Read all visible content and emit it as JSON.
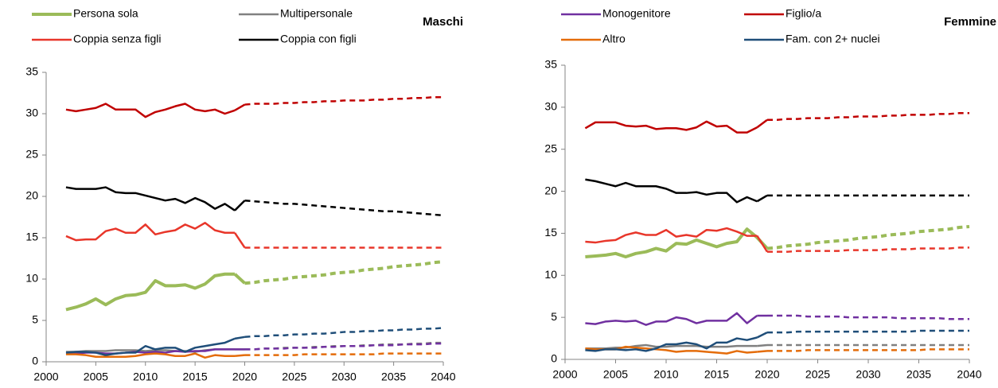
{
  "chart_data": [
    {
      "type": "line",
      "title": "Maschi",
      "x": [
        2002,
        2003,
        2004,
        2005,
        2006,
        2007,
        2008,
        2009,
        2010,
        2011,
        2012,
        2013,
        2014,
        2015,
        2016,
        2017,
        2018,
        2019,
        2020,
        2021,
        2022,
        2023,
        2024,
        2025,
        2026,
        2027,
        2028,
        2029,
        2030,
        2031,
        2032,
        2033,
        2034,
        2035,
        2036,
        2037,
        2038,
        2039,
        2040
      ],
      "xlim": [
        2000,
        2040
      ],
      "xticks": [
        2000,
        2005,
        2010,
        2015,
        2020,
        2025,
        2030,
        2035,
        2040
      ],
      "ylim": [
        0,
        35
      ],
      "yticks": [
        0,
        5,
        10,
        15,
        20,
        25,
        30,
        35
      ],
      "dashed_from": 2020,
      "series": [
        {
          "name": "Persona sola",
          "color": "#9bbb59",
          "values": [
            6.3,
            6.6,
            7.0,
            7.6,
            6.9,
            7.6,
            8.0,
            8.1,
            8.4,
            9.8,
            9.2,
            9.2,
            9.3,
            8.9,
            9.4,
            10.4,
            10.6,
            10.6,
            9.5,
            9.6,
            9.8,
            9.9,
            10.0,
            10.2,
            10.3,
            10.4,
            10.5,
            10.7,
            10.8,
            10.9,
            11.1,
            11.2,
            11.3,
            11.5,
            11.6,
            11.7,
            11.8,
            12.0,
            12.1
          ]
        },
        {
          "name": "Multipersonale",
          "color": "#808080",
          "values": [
            1.2,
            1.2,
            1.3,
            1.3,
            1.3,
            1.4,
            1.4,
            1.4,
            1.3,
            1.4,
            1.4,
            1.3,
            1.3,
            1.2,
            1.4,
            1.5,
            1.5,
            1.5,
            1.5,
            1.5,
            1.6,
            1.6,
            1.7,
            1.7,
            1.7,
            1.8,
            1.8,
            1.9,
            1.9,
            1.9,
            2.0,
            2.0,
            2.1,
            2.1,
            2.1,
            2.2,
            2.2,
            2.3,
            2.3
          ]
        },
        {
          "name": "Coppia senza figli",
          "color": "#e8362a",
          "values": [
            15.2,
            14.7,
            14.8,
            14.8,
            15.8,
            16.1,
            15.6,
            15.6,
            16.6,
            15.4,
            15.7,
            15.9,
            16.6,
            16.1,
            16.8,
            15.9,
            15.6,
            15.6,
            13.8,
            13.8,
            13.8,
            13.8,
            13.8,
            13.8,
            13.8,
            13.8,
            13.8,
            13.8,
            13.8,
            13.8,
            13.8,
            13.8,
            13.8,
            13.8,
            13.8,
            13.8,
            13.8,
            13.8,
            13.8
          ]
        },
        {
          "name": "Coppia con figli",
          "color": "#000000",
          "values": [
            21.1,
            20.9,
            20.9,
            20.9,
            21.1,
            20.5,
            20.4,
            20.4,
            20.1,
            19.8,
            19.5,
            19.7,
            19.2,
            19.8,
            19.3,
            18.5,
            19.1,
            18.3,
            19.5,
            19.4,
            19.3,
            19.2,
            19.1,
            19.1,
            19.0,
            18.9,
            18.8,
            18.7,
            18.6,
            18.5,
            18.4,
            18.3,
            18.2,
            18.2,
            18.1,
            18.0,
            17.9,
            17.8,
            17.7
          ]
        },
        {
          "color": "#7030a0",
          "values": [
            1.0,
            1.0,
            1.1,
            1.1,
            1.0,
            1.0,
            1.1,
            1.2,
            1.1,
            1.2,
            1.1,
            1.3,
            1.2,
            1.3,
            1.3,
            1.5,
            1.5,
            1.5,
            1.5,
            1.5,
            1.6,
            1.6,
            1.6,
            1.7,
            1.7,
            1.7,
            1.8,
            1.8,
            1.9,
            1.9,
            1.9,
            2.0,
            2.0,
            2.0,
            2.1,
            2.1,
            2.1,
            2.2,
            2.2
          ]
        },
        {
          "color": "#c00000",
          "values": [
            30.5,
            30.3,
            30.5,
            30.7,
            31.2,
            30.5,
            30.5,
            30.5,
            29.6,
            30.2,
            30.5,
            30.9,
            31.2,
            30.5,
            30.3,
            30.5,
            30.0,
            30.4,
            31.1,
            31.2,
            31.2,
            31.2,
            31.3,
            31.3,
            31.4,
            31.4,
            31.5,
            31.5,
            31.6,
            31.6,
            31.6,
            31.7,
            31.7,
            31.8,
            31.8,
            31.9,
            31.9,
            32.0,
            32.0
          ]
        },
        {
          "color": "#e46c0a",
          "values": [
            0.9,
            0.9,
            0.8,
            0.6,
            0.6,
            0.6,
            0.6,
            0.7,
            0.9,
            1.0,
            0.9,
            0.7,
            0.7,
            1.0,
            0.5,
            0.8,
            0.7,
            0.7,
            0.8,
            0.8,
            0.8,
            0.8,
            0.8,
            0.8,
            0.9,
            0.9,
            0.9,
            0.9,
            0.9,
            0.9,
            0.9,
            0.9,
            1.0,
            1.0,
            1.0,
            1.0,
            1.0,
            1.0,
            1.0
          ]
        },
        {
          "color": "#1f4e79",
          "values": [
            1.1,
            1.2,
            1.2,
            1.1,
            0.8,
            1.0,
            1.1,
            1.1,
            1.9,
            1.5,
            1.7,
            1.7,
            1.2,
            1.7,
            1.9,
            2.1,
            2.3,
            2.8,
            3.0,
            3.1,
            3.1,
            3.2,
            3.2,
            3.3,
            3.3,
            3.4,
            3.4,
            3.5,
            3.6,
            3.6,
            3.7,
            3.7,
            3.8,
            3.8,
            3.9,
            3.9,
            4.0,
            4.0,
            4.1
          ]
        }
      ]
    },
    {
      "type": "line",
      "title": "Femmine",
      "x": [
        2002,
        2003,
        2004,
        2005,
        2006,
        2007,
        2008,
        2009,
        2010,
        2011,
        2012,
        2013,
        2014,
        2015,
        2016,
        2017,
        2018,
        2019,
        2020,
        2021,
        2022,
        2023,
        2024,
        2025,
        2026,
        2027,
        2028,
        2029,
        2030,
        2031,
        2032,
        2033,
        2034,
        2035,
        2036,
        2037,
        2038,
        2039,
        2040
      ],
      "xlim": [
        2000,
        2040
      ],
      "xticks": [
        2000,
        2005,
        2010,
        2015,
        2020,
        2025,
        2030,
        2035,
        2040
      ],
      "ylim": [
        0,
        35
      ],
      "yticks": [
        0,
        5,
        10,
        15,
        20,
        25,
        30,
        35
      ],
      "dashed_from": 2020,
      "series": [
        {
          "color": "#9bbb59",
          "values": [
            12.2,
            12.3,
            12.4,
            12.6,
            12.2,
            12.6,
            12.8,
            13.2,
            12.9,
            13.8,
            13.7,
            14.2,
            13.8,
            13.4,
            13.8,
            14.0,
            15.5,
            14.5,
            13.2,
            13.3,
            13.5,
            13.6,
            13.7,
            13.9,
            14.0,
            14.1,
            14.2,
            14.4,
            14.5,
            14.6,
            14.8,
            14.9,
            15.0,
            15.2,
            15.3,
            15.4,
            15.5,
            15.7,
            15.8
          ]
        },
        {
          "color": "#808080",
          "values": [
            1.3,
            1.3,
            1.3,
            1.4,
            1.4,
            1.6,
            1.7,
            1.5,
            1.5,
            1.6,
            1.6,
            1.6,
            1.5,
            1.5,
            1.5,
            1.6,
            1.6,
            1.6,
            1.7,
            1.7,
            1.7,
            1.7,
            1.7,
            1.7,
            1.7,
            1.7,
            1.7,
            1.7,
            1.7,
            1.7,
            1.7,
            1.7,
            1.7,
            1.7,
            1.7,
            1.7,
            1.7,
            1.7,
            1.7
          ]
        },
        {
          "color": "#e8362a",
          "values": [
            14.0,
            13.9,
            14.1,
            14.2,
            14.8,
            15.1,
            14.8,
            14.8,
            15.4,
            14.6,
            14.8,
            14.6,
            15.4,
            15.3,
            15.6,
            15.2,
            14.7,
            14.7,
            12.8,
            12.8,
            12.8,
            12.9,
            12.9,
            12.9,
            12.9,
            12.9,
            13.0,
            13.0,
            13.0,
            13.0,
            13.1,
            13.1,
            13.1,
            13.2,
            13.2,
            13.2,
            13.2,
            13.3,
            13.3
          ]
        },
        {
          "color": "#000000",
          "values": [
            21.4,
            21.2,
            20.9,
            20.6,
            21.0,
            20.6,
            20.6,
            20.6,
            20.3,
            19.8,
            19.8,
            19.9,
            19.6,
            19.8,
            19.8,
            18.7,
            19.3,
            18.8,
            19.5,
            19.5,
            19.5,
            19.5,
            19.5,
            19.5,
            19.5,
            19.5,
            19.5,
            19.5,
            19.5,
            19.5,
            19.5,
            19.5,
            19.5,
            19.5,
            19.5,
            19.5,
            19.5,
            19.5,
            19.5
          ]
        },
        {
          "name": "Monogenitore",
          "color": "#7030a0",
          "values": [
            4.3,
            4.2,
            4.5,
            4.6,
            4.5,
            4.6,
            4.1,
            4.5,
            4.5,
            5.0,
            4.8,
            4.3,
            4.6,
            4.6,
            4.6,
            5.5,
            4.3,
            5.2,
            5.2,
            5.2,
            5.2,
            5.2,
            5.1,
            5.1,
            5.1,
            5.1,
            5.0,
            5.0,
            5.0,
            5.0,
            5.0,
            4.9,
            4.9,
            4.9,
            4.9,
            4.9,
            4.8,
            4.8,
            4.8
          ]
        },
        {
          "name": "Figlio/a",
          "color": "#c00000",
          "values": [
            27.5,
            28.2,
            28.2,
            28.2,
            27.8,
            27.7,
            27.8,
            27.4,
            27.5,
            27.5,
            27.3,
            27.6,
            28.3,
            27.7,
            27.8,
            27.0,
            27.0,
            27.6,
            28.5,
            28.5,
            28.6,
            28.6,
            28.7,
            28.7,
            28.7,
            28.8,
            28.8,
            28.9,
            28.9,
            28.9,
            29.0,
            29.0,
            29.1,
            29.1,
            29.1,
            29.2,
            29.2,
            29.3,
            29.3
          ]
        },
        {
          "name": "Altro",
          "color": "#e46c0a",
          "values": [
            1.3,
            1.2,
            1.2,
            1.2,
            1.5,
            1.4,
            1.3,
            1.2,
            1.1,
            0.9,
            1.0,
            1.0,
            0.9,
            0.8,
            0.7,
            1.0,
            0.8,
            0.9,
            1.0,
            1.0,
            1.0,
            1.0,
            1.1,
            1.1,
            1.1,
            1.1,
            1.1,
            1.1,
            1.1,
            1.1,
            1.1,
            1.1,
            1.1,
            1.1,
            1.2,
            1.2,
            1.2,
            1.2,
            1.2
          ]
        },
        {
          "name": "Fam. con 2+ nuclei",
          "color": "#1f4e79",
          "values": [
            1.1,
            1.0,
            1.2,
            1.2,
            1.1,
            1.2,
            1.0,
            1.3,
            1.8,
            1.8,
            2.0,
            1.8,
            1.3,
            2.0,
            2.0,
            2.5,
            2.3,
            2.6,
            3.2,
            3.2,
            3.2,
            3.3,
            3.3,
            3.3,
            3.3,
            3.3,
            3.3,
            3.3,
            3.3,
            3.3,
            3.3,
            3.3,
            3.3,
            3.4,
            3.4,
            3.4,
            3.4,
            3.4,
            3.4
          ]
        }
      ]
    }
  ]
}
